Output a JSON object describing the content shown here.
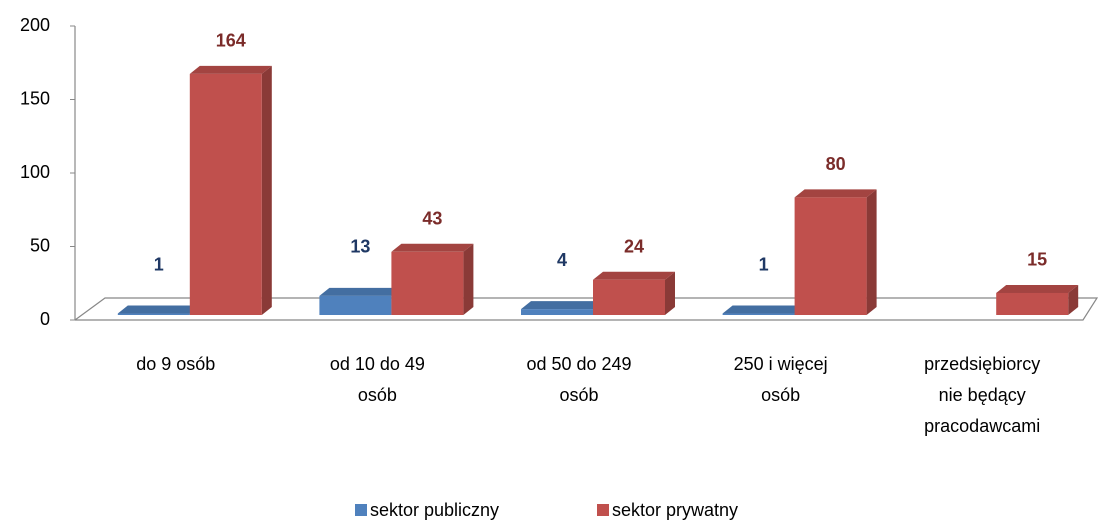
{
  "chart_data": {
    "type": "bar3d",
    "categories": [
      "do 9 osób",
      "od 10 do 49 osób",
      "od 50 do 249 osób",
      "250 i więcej osób",
      "przedsiębiorcy nie będący pracodawcami"
    ],
    "series": [
      {
        "name": "sektor publiczny",
        "color": "#4f81bd",
        "values": [
          1,
          13,
          4,
          1,
          null
        ]
      },
      {
        "name": "sektor prywatny",
        "color": "#c0504d",
        "values": [
          164,
          43,
          24,
          80,
          15
        ]
      }
    ],
    "ylim": [
      0,
      200
    ],
    "yticks": [
      0,
      50,
      100,
      150,
      200
    ],
    "grid": false,
    "legend": "bottom"
  }
}
